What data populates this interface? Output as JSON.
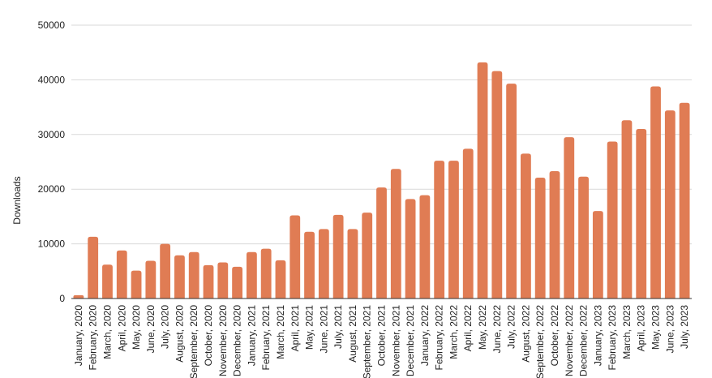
{
  "chart_data": {
    "type": "bar",
    "title": "",
    "xlabel": "",
    "ylabel": "Downloads",
    "ylim": [
      0,
      50000
    ],
    "y_ticks": [
      "0",
      "10000",
      "20000",
      "30000",
      "40000",
      "50000"
    ],
    "grid": "horizontal",
    "legend": "none",
    "colors": {
      "bar": "#e07c54",
      "grid": "#d9d9d9",
      "axis": "#333333"
    },
    "categories": [
      "January, 2020",
      "February, 2020",
      "March, 2020",
      "April, 2020",
      "May, 2020",
      "June, 2020",
      "July, 2020",
      "August, 2020",
      "September, 2020",
      "October, 2020",
      "November, 2020",
      "December, 2020",
      "January, 2021",
      "February, 2021",
      "March, 2021",
      "April, 2021",
      "May, 2021",
      "June, 2021",
      "July, 2021",
      "August, 2021",
      "September, 2021",
      "October, 2021",
      "November, 2021",
      "December, 2021",
      "January, 2022",
      "February, 2022",
      "March, 2022",
      "April, 2022",
      "May, 2022",
      "June, 2022",
      "July, 2022",
      "August, 2022",
      "September, 2022",
      "October, 2022",
      "November, 2022",
      "December, 2022",
      "January, 2023",
      "February, 2023",
      "March, 2023",
      "April, 2023",
      "May, 2023",
      "June, 2023",
      "July, 2023"
    ],
    "values": [
      600,
      11300,
      6200,
      8800,
      5100,
      6900,
      10000,
      7900,
      8500,
      6100,
      6600,
      5800,
      8500,
      9100,
      7000,
      15200,
      12200,
      12700,
      15300,
      12700,
      15700,
      20300,
      23700,
      18200,
      18900,
      25200,
      25200,
      27400,
      43200,
      41600,
      39300,
      26500,
      22100,
      23300,
      29500,
      22300,
      16000,
      28700,
      32600,
      31000,
      38800,
      34400,
      35800
    ]
  }
}
